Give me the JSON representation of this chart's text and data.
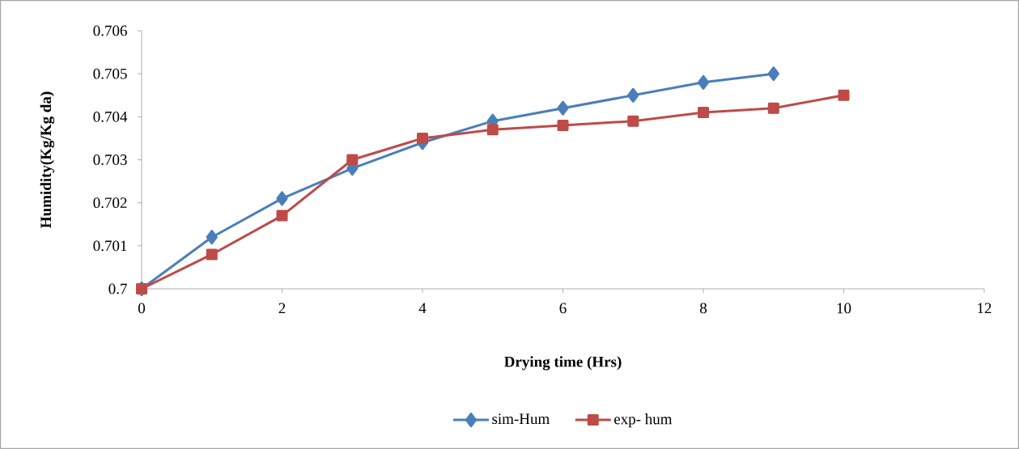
{
  "chart_data": {
    "type": "line",
    "xlabel": "Drying time (Hrs)",
    "ylabel": "Humidity(Kg/Kg da)",
    "x": [
      0,
      1,
      2,
      3,
      4,
      5,
      6,
      7,
      8,
      9,
      10
    ],
    "series": [
      {
        "name": "sim-Hum",
        "color": "#4a7ebb",
        "marker": "diamond",
        "values": [
          0.7,
          0.7012,
          0.7021,
          0.7028,
          0.7034,
          0.7039,
          0.7042,
          0.7045,
          0.7048,
          0.705,
          null
        ]
      },
      {
        "name": "exp- hum",
        "color": "#be4b48",
        "marker": "square",
        "values": [
          0.7,
          0.7008,
          0.7017,
          0.703,
          0.7035,
          0.7037,
          0.7038,
          0.7039,
          0.7041,
          0.7042,
          0.7045
        ]
      }
    ],
    "xlim": [
      0,
      12
    ],
    "xticks": [
      0,
      2,
      4,
      6,
      8,
      10,
      12
    ],
    "ylim": [
      0.7,
      0.706
    ],
    "yticks": [
      0.7,
      0.701,
      0.702,
      0.703,
      0.704,
      0.705,
      0.706
    ],
    "grid": false,
    "legend": "bottom"
  }
}
